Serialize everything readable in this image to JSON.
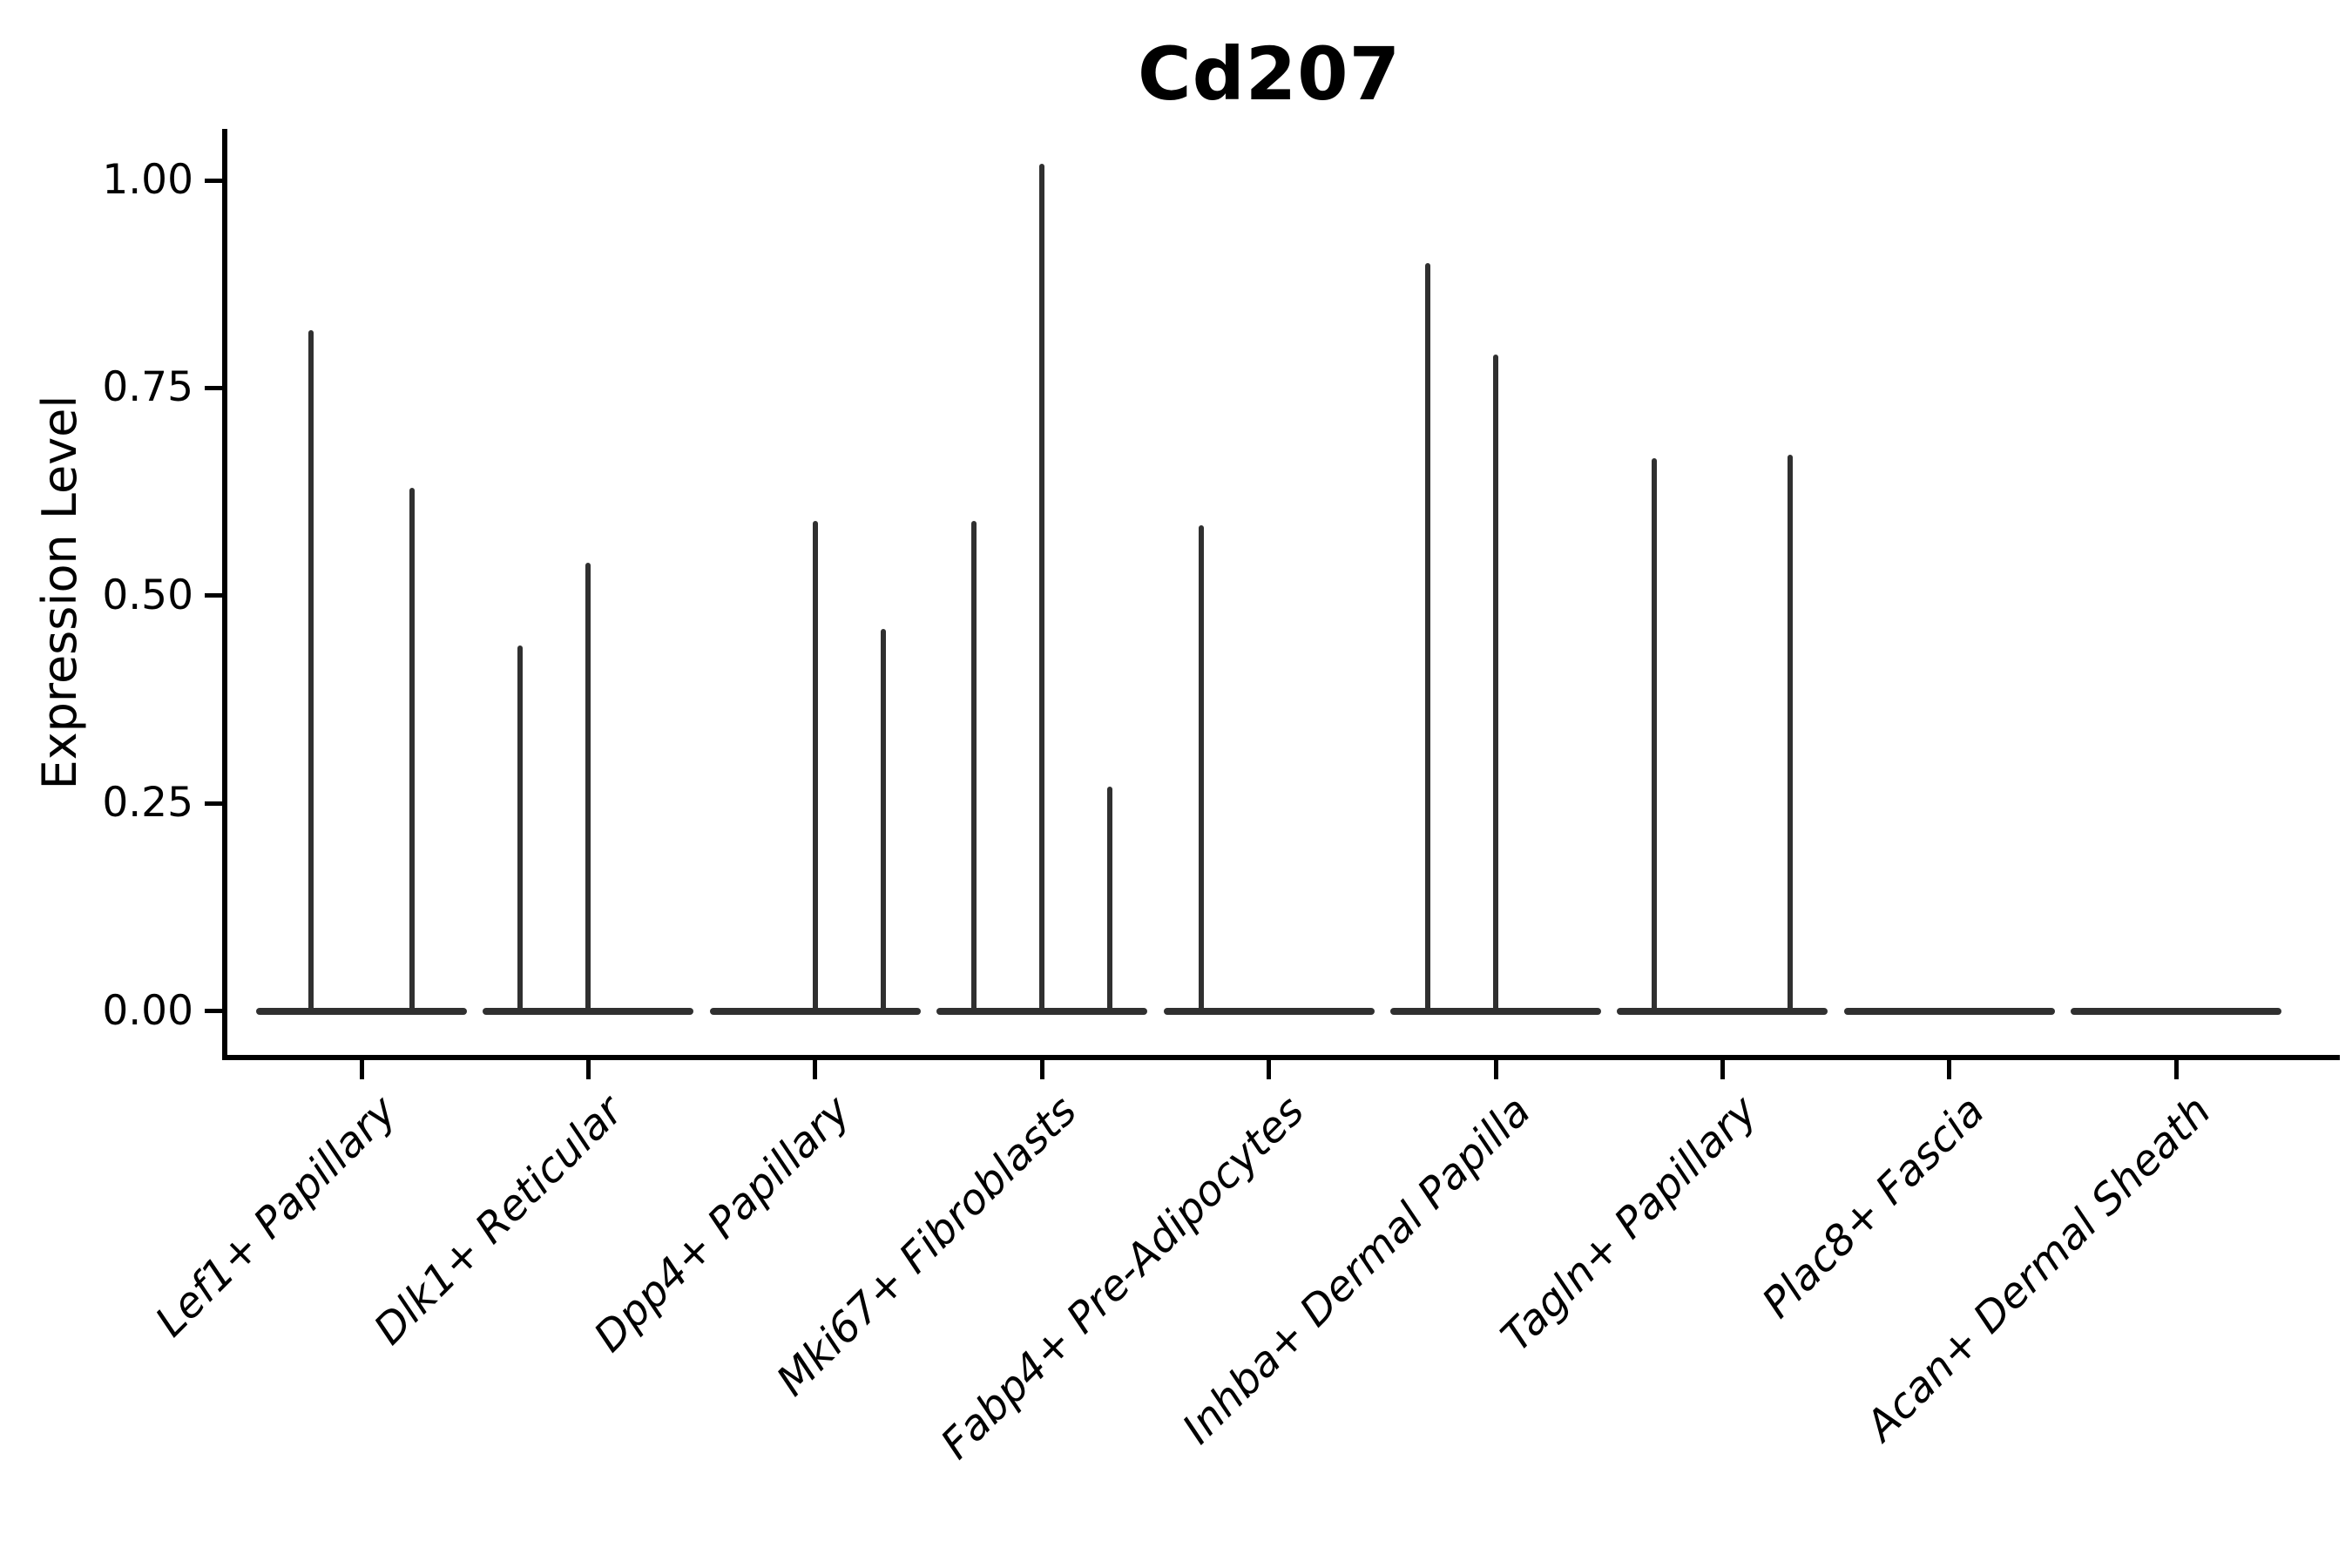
{
  "title": "Cd207",
  "y_axis": {
    "label": "Expression Level",
    "ticks": [
      {
        "label": "1.00",
        "value": 1.0
      },
      {
        "label": "0.75",
        "value": 0.75
      },
      {
        "label": "0.50",
        "value": 0.5
      },
      {
        "label": "0.25",
        "value": 0.25
      },
      {
        "label": "0.00",
        "value": 0.0
      }
    ]
  },
  "colors": {
    "violin_line": "#303030",
    "axis": "#000000",
    "background": "#ffffff",
    "text": "#000000"
  },
  "chart_data": {
    "type": "violin",
    "title": "Cd207",
    "xlabel": "",
    "ylabel": "Expression Level",
    "ylim": [
      -0.09,
      1.06
    ],
    "grid": false,
    "legend": null,
    "categories": [
      "Lef1+ Papillary",
      "Dlk1+ Reticular",
      "Dpp4+ Papillary",
      "Mki67+ Fibroblasts",
      "Fabp4+ Pre-Adipocytes",
      "Inhba+ Dermal Papilla",
      "Tagln+ Papillary",
      "Plac8+ Fascia",
      "Acan+ Dermal Sheath"
    ],
    "description": "Each category shows a violin collapsed to a flat line at 0 expression; thin vertical spikes mark the few expressing cells. dx is the horizontal offset of each spike from the category center (sub-violin position), value is the spike top in expression units.",
    "groups": [
      {
        "category": "Lef1+ Papillary",
        "baseline": 0,
        "spikes": [
          {
            "dx": -58,
            "value": 0.82
          },
          {
            "dx": 58,
            "value": 0.63
          }
        ]
      },
      {
        "category": "Dlk1+ Reticular",
        "baseline": 0,
        "spikes": [
          {
            "dx": -78,
            "value": 0.44
          },
          {
            "dx": 0,
            "value": 0.54
          }
        ]
      },
      {
        "category": "Dpp4+ Papillary",
        "baseline": 0,
        "spikes": [
          {
            "dx": 0,
            "value": 0.59
          },
          {
            "dx": 78,
            "value": 0.46
          }
        ]
      },
      {
        "category": "Mki67+ Fibroblasts",
        "baseline": 0,
        "spikes": [
          {
            "dx": -78,
            "value": 0.59
          },
          {
            "dx": 0,
            "value": 1.02
          },
          {
            "dx": 78,
            "value": 0.27
          }
        ]
      },
      {
        "category": "Fabp4+ Pre-Adipocytes",
        "baseline": 0,
        "spikes": [
          {
            "dx": -78,
            "value": 0.585
          }
        ]
      },
      {
        "category": "Inhba+ Dermal Papilla",
        "baseline": 0,
        "spikes": [
          {
            "dx": -78,
            "value": 0.9
          },
          {
            "dx": 0,
            "value": 0.79
          }
        ]
      },
      {
        "category": "Tagln+ Papillary",
        "baseline": 0,
        "spikes": [
          {
            "dx": -78,
            "value": 0.665
          },
          {
            "dx": 78,
            "value": 0.67
          }
        ]
      },
      {
        "category": "Plac8+ Fascia",
        "baseline": 0,
        "spikes": []
      },
      {
        "category": "Acan+ Dermal Sheath",
        "baseline": 0,
        "spikes": []
      }
    ]
  }
}
